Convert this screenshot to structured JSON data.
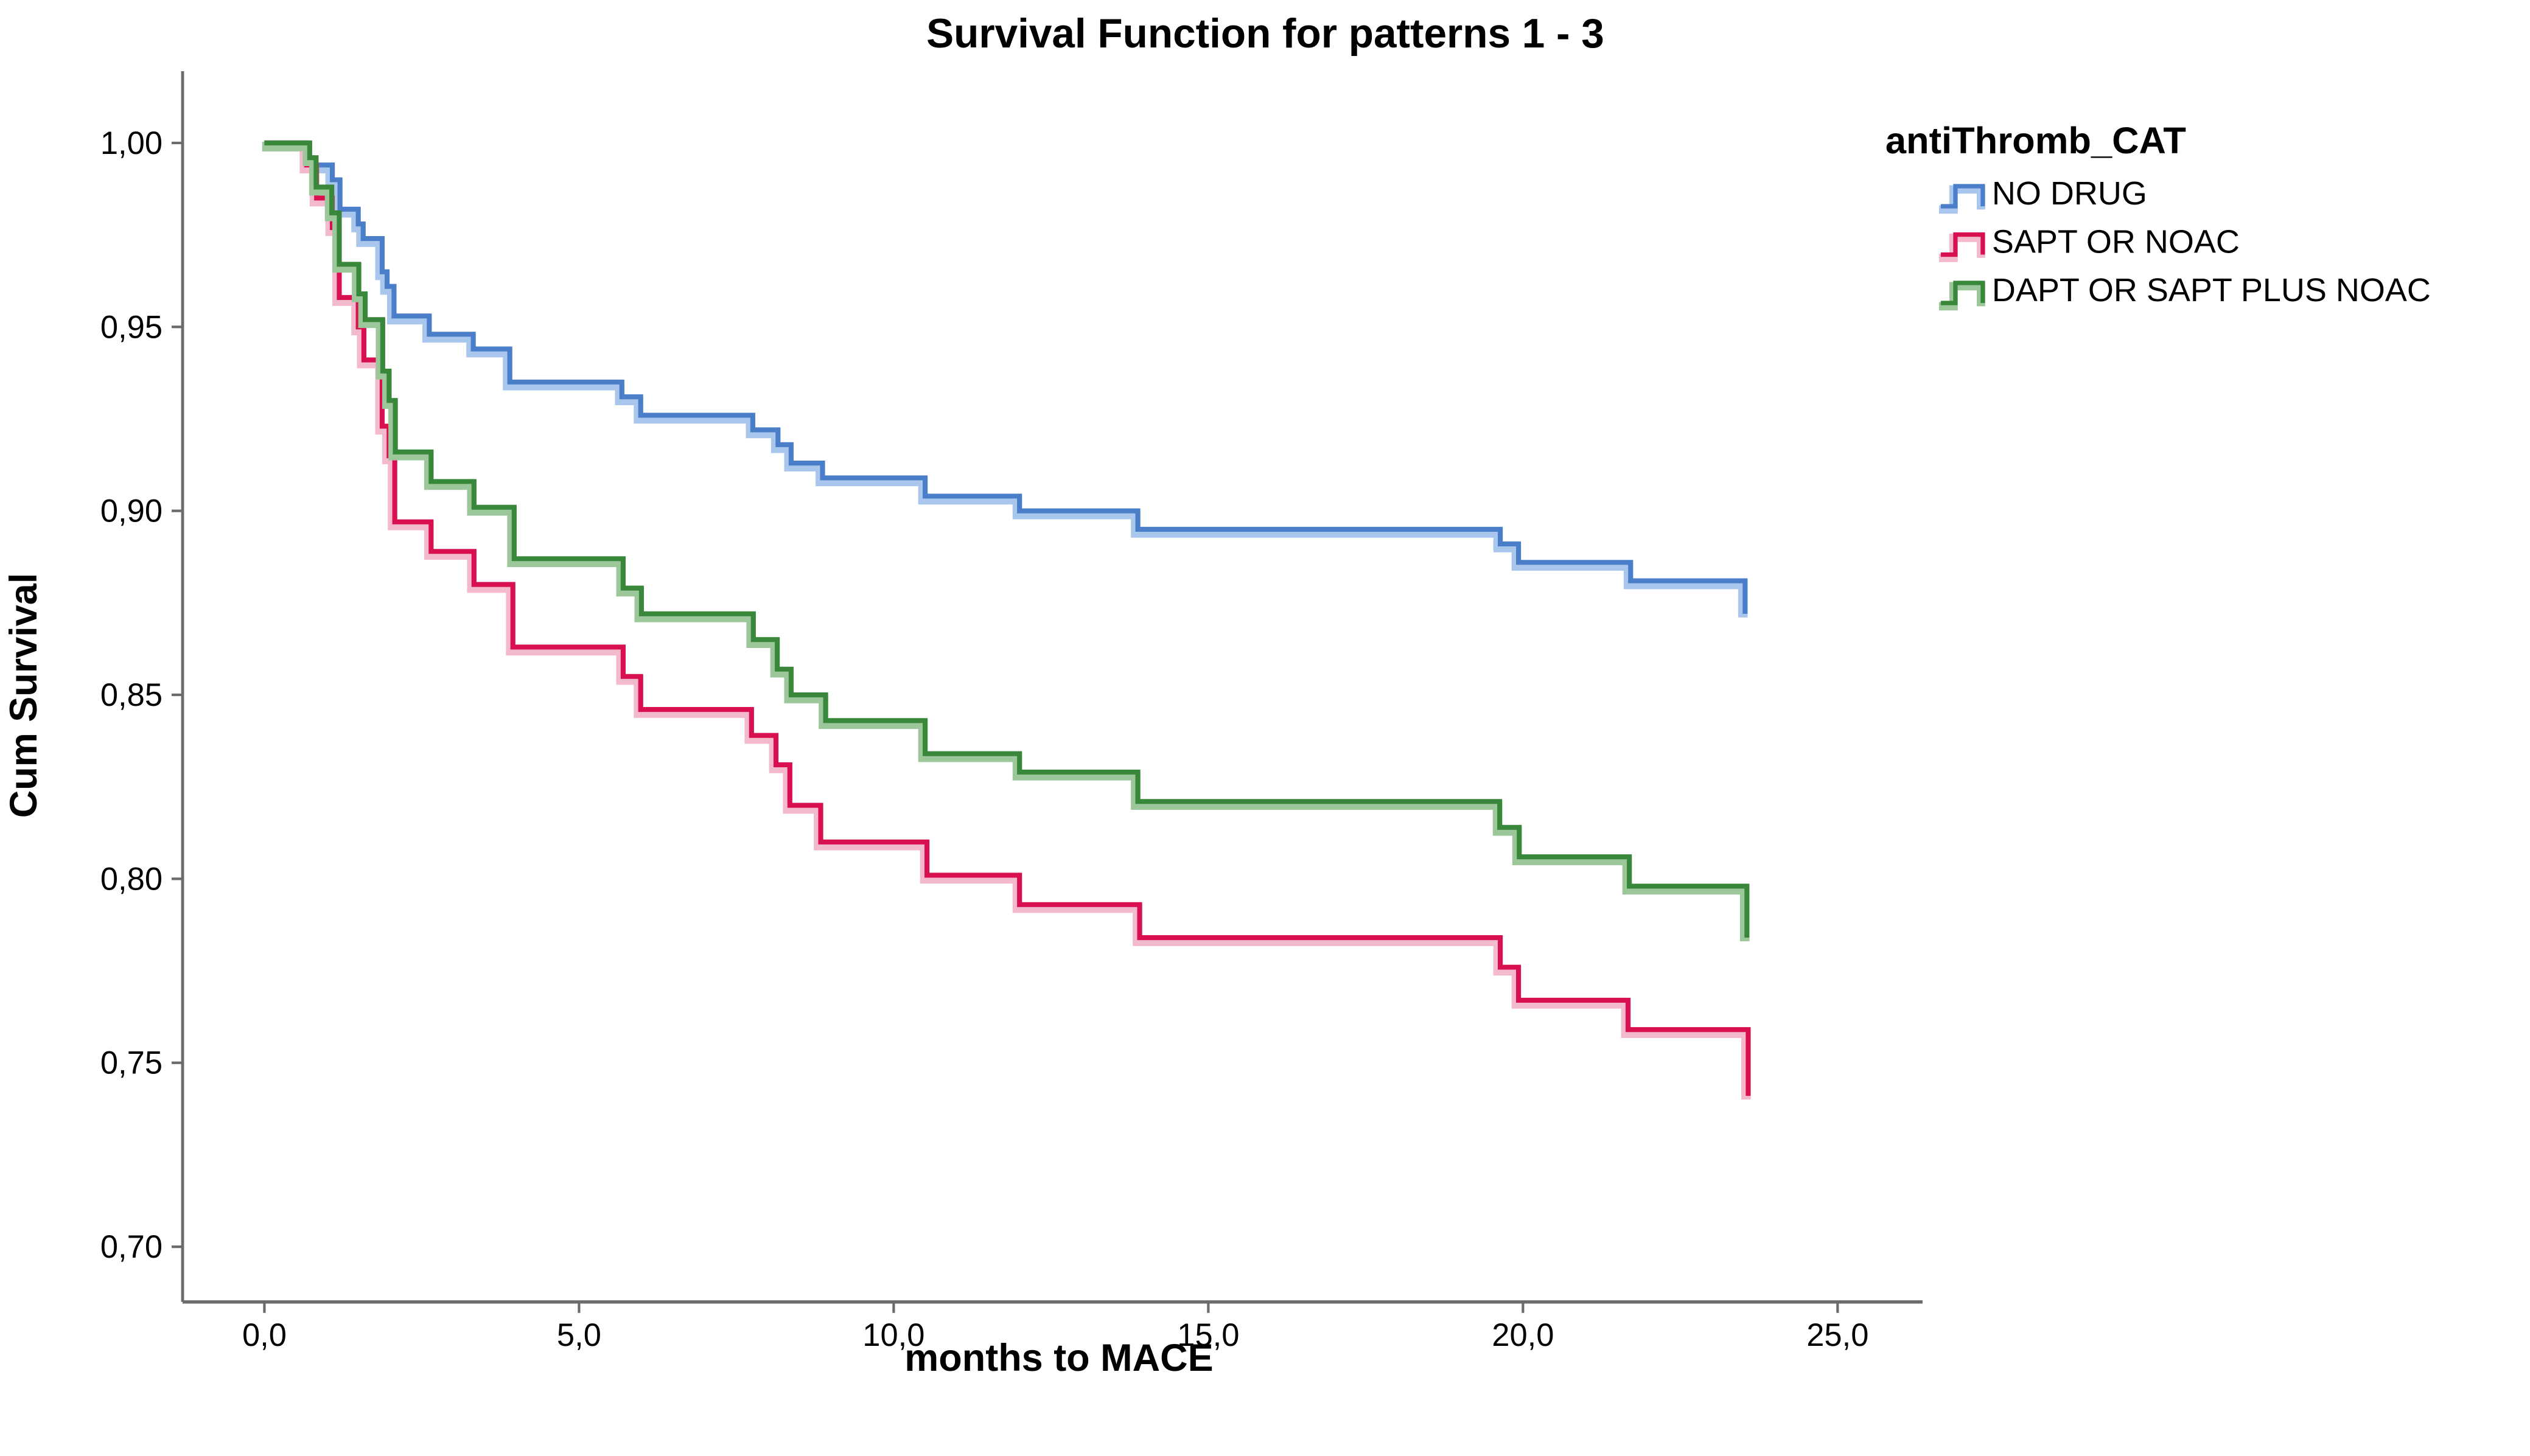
{
  "title": "Survival Function for patterns 1 - 3",
  "axes": {
    "x_title": "months to MACE",
    "y_title": "Cum Survival",
    "x_ticks": [
      {
        "v": 0,
        "label": "0,0"
      },
      {
        "v": 5,
        "label": "5,0"
      },
      {
        "v": 10,
        "label": "10,0"
      },
      {
        "v": 15,
        "label": "15,0"
      },
      {
        "v": 20,
        "label": "20,0"
      },
      {
        "v": 25,
        "label": "25,0"
      }
    ],
    "y_ticks": [
      {
        "v": 1.0,
        "label": "1,00"
      },
      {
        "v": 0.95,
        "label": "0,95"
      },
      {
        "v": 0.9,
        "label": "0,90"
      },
      {
        "v": 0.85,
        "label": "0,85"
      },
      {
        "v": 0.8,
        "label": "0,80"
      },
      {
        "v": 0.75,
        "label": "0,75"
      },
      {
        "v": 0.7,
        "label": "0,70"
      }
    ],
    "axis_color": "#6b6b6b"
  },
  "legend": {
    "title": "antiThromb_CAT",
    "items": [
      {
        "label": "NO DRUG",
        "color": "#4A7EC9",
        "halo": "#A9C7ED"
      },
      {
        "label": "SAPT OR NOAC",
        "color": "#D8104F",
        "halo": "#F3B9CD"
      },
      {
        "label": "DAPT OR SAPT PLUS NOAC",
        "color": "#39873B",
        "halo": "#9CC79B"
      }
    ]
  },
  "chart_data": {
    "type": "line",
    "subtype": "kaplan-meier-step",
    "title": "Survival Function for patterns 1 - 3",
    "xlabel": "months to MACE",
    "ylabel": "Cum Survival",
    "xlim": [
      -1.3,
      26.35
    ],
    "ylim": [
      0.685,
      1.0195
    ],
    "grid": false,
    "legend_position": "right",
    "series": [
      {
        "name": "NO DRUG",
        "color": "#4A7EC9",
        "halo": "#A9C7ED",
        "points": [
          [
            0,
            1.0
          ],
          [
            0.7,
            0.994
          ],
          [
            1.08,
            0.99
          ],
          [
            1.2,
            0.982
          ],
          [
            1.49,
            0.978
          ],
          [
            1.57,
            0.974
          ],
          [
            1.87,
            0.965
          ],
          [
            1.95,
            0.961
          ],
          [
            2.06,
            0.953
          ],
          [
            2.62,
            0.948
          ],
          [
            3.32,
            0.944
          ],
          [
            3.9,
            0.935
          ],
          [
            5.68,
            0.931
          ],
          [
            5.98,
            0.926
          ],
          [
            7.76,
            0.922
          ],
          [
            8.16,
            0.918
          ],
          [
            8.37,
            0.913
          ],
          [
            8.87,
            0.909
          ],
          [
            10.5,
            0.904
          ],
          [
            12.0,
            0.9
          ],
          [
            13.88,
            0.895
          ],
          [
            19.64,
            0.891
          ],
          [
            19.93,
            0.886
          ],
          [
            21.71,
            0.881
          ],
          [
            23.53,
            0.872
          ]
        ]
      },
      {
        "name": "SAPT OR NOAC",
        "color": "#D8104F",
        "halo": "#F3B9CD",
        "points": [
          [
            0,
            1.0
          ],
          [
            0.67,
            0.994
          ],
          [
            0.83,
            0.985
          ],
          [
            1.08,
            0.977
          ],
          [
            1.19,
            0.958
          ],
          [
            1.49,
            0.95
          ],
          [
            1.58,
            0.941
          ],
          [
            1.87,
            0.923
          ],
          [
            1.98,
            0.915
          ],
          [
            2.07,
            0.897
          ],
          [
            2.65,
            0.889
          ],
          [
            3.33,
            0.88
          ],
          [
            3.95,
            0.863
          ],
          [
            5.7,
            0.855
          ],
          [
            5.98,
            0.846
          ],
          [
            7.74,
            0.839
          ],
          [
            8.13,
            0.831
          ],
          [
            8.35,
            0.82
          ],
          [
            8.84,
            0.81
          ],
          [
            10.53,
            0.801
          ],
          [
            12.0,
            0.793
          ],
          [
            13.91,
            0.784
          ],
          [
            19.64,
            0.776
          ],
          [
            19.93,
            0.767
          ],
          [
            21.67,
            0.759
          ],
          [
            23.58,
            0.741
          ]
        ]
      },
      {
        "name": "DAPT OR SAPT PLUS NOAC",
        "color": "#39873B",
        "halo": "#9CC79B",
        "points": [
          [
            0,
            1.0
          ],
          [
            0.72,
            0.996
          ],
          [
            0.82,
            0.988
          ],
          [
            1.07,
            0.981
          ],
          [
            1.19,
            0.967
          ],
          [
            1.5,
            0.959
          ],
          [
            1.6,
            0.952
          ],
          [
            1.88,
            0.938
          ],
          [
            1.98,
            0.93
          ],
          [
            2.08,
            0.916
          ],
          [
            2.65,
            0.908
          ],
          [
            3.33,
            0.901
          ],
          [
            3.97,
            0.887
          ],
          [
            5.7,
            0.879
          ],
          [
            5.99,
            0.872
          ],
          [
            7.77,
            0.865
          ],
          [
            8.15,
            0.857
          ],
          [
            8.37,
            0.85
          ],
          [
            8.92,
            0.843
          ],
          [
            10.5,
            0.834
          ],
          [
            12.0,
            0.829
          ],
          [
            13.88,
            0.821
          ],
          [
            19.63,
            0.814
          ],
          [
            19.94,
            0.806
          ],
          [
            21.69,
            0.798
          ],
          [
            23.56,
            0.784
          ]
        ]
      }
    ]
  }
}
